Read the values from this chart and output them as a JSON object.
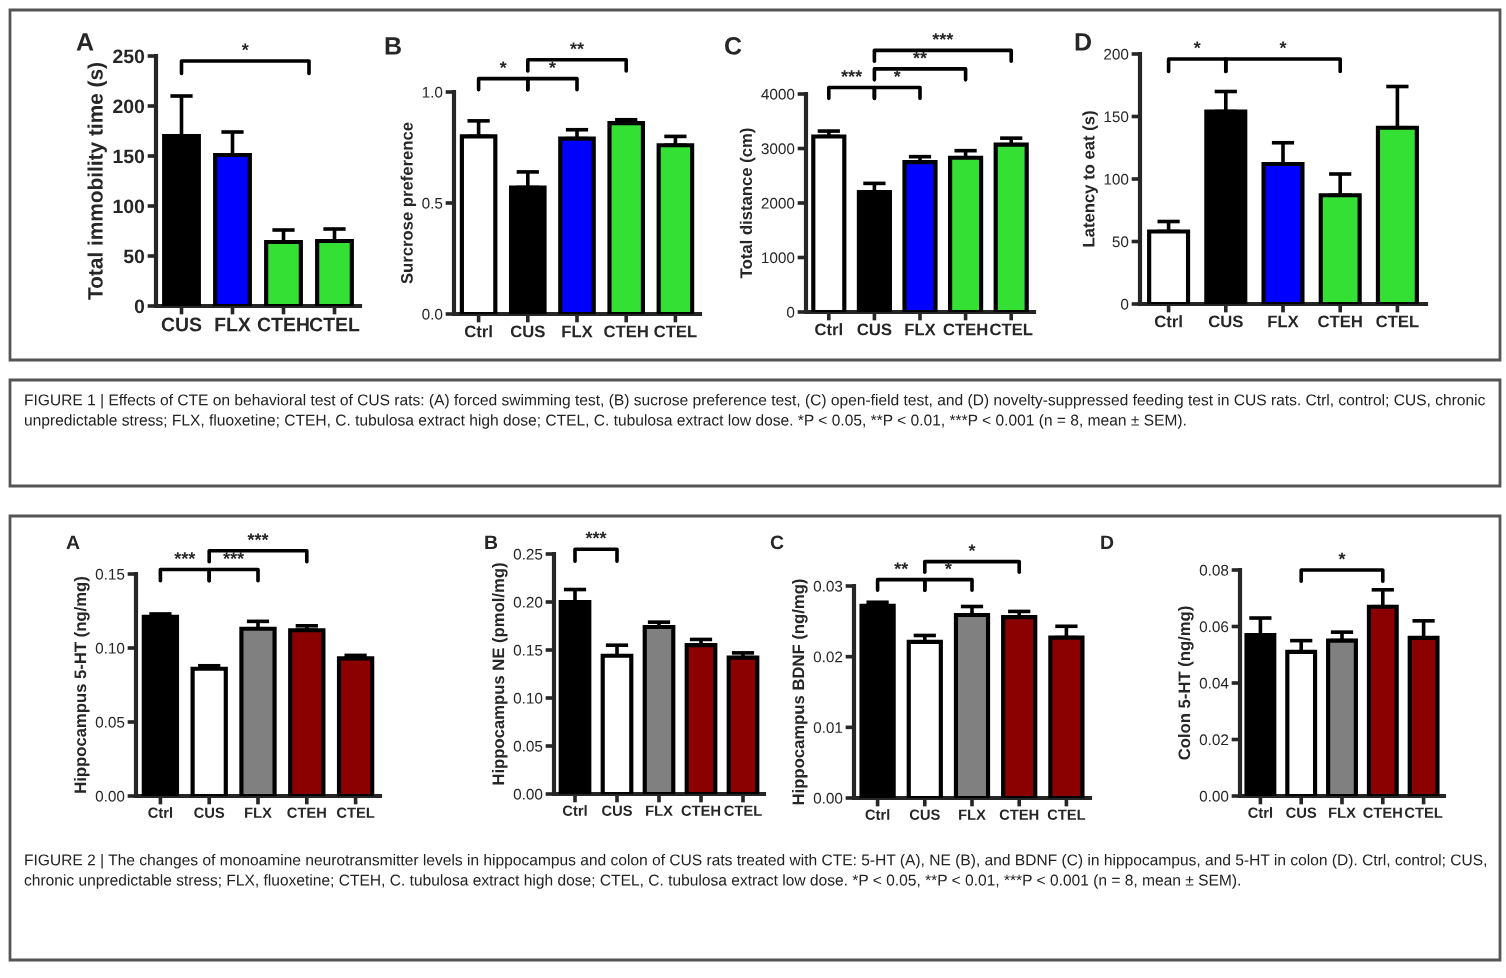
{
  "chart_data": [
    {
      "type": "bar",
      "title": "A",
      "ylabel": "Total immobility time (s)",
      "categories": [
        "CUS",
        "FLX",
        "CTEH",
        "CTEL"
      ],
      "values": [
        170,
        151,
        64,
        65
      ],
      "errors": [
        40,
        23,
        12,
        12
      ],
      "colors": [
        "#000000",
        "#0000ff",
        "#33e033",
        "#33e033"
      ],
      "ylim": [
        0,
        250
      ],
      "yticks": [
        0,
        50,
        100,
        150,
        200,
        250
      ],
      "annotations": [
        "*"
      ]
    },
    {
      "type": "bar",
      "title": "B",
      "ylabel": "Surcrose preference",
      "categories": [
        "Ctrl",
        "CUS",
        "FLX",
        "CTEH",
        "CTEL"
      ],
      "values": [
        0.8,
        0.57,
        0.79,
        0.86,
        0.76
      ],
      "errors": [
        0.07,
        0.07,
        0.04,
        0.015,
        0.04
      ],
      "colors": [
        "#ffffff",
        "#000000",
        "#0000ff",
        "#33e033",
        "#33e033"
      ],
      "ylim": [
        0,
        1.0
      ],
      "yticks": [
        {
          "value": 0,
          "label": "0.0"
        },
        {
          "value": 0.5,
          "label": "0.5"
        },
        {
          "value": 1.0,
          "label": "1.0"
        }
      ],
      "annotations": [
        "*",
        "*",
        "**"
      ]
    },
    {
      "type": "bar",
      "title": "C",
      "ylabel": "Total distance (cm)",
      "categories": [
        "Ctrl",
        "CUS",
        "FLX",
        "CTEH",
        "CTEL"
      ],
      "values": [
        3220,
        2200,
        2750,
        2830,
        3070
      ],
      "errors": [
        100,
        160,
        100,
        130,
        120
      ],
      "colors": [
        "#ffffff",
        "#000000",
        "#0000ff",
        "#33e033",
        "#33e033"
      ],
      "ylim": [
        0,
        4000
      ],
      "yticks": [
        0,
        1000,
        2000,
        3000,
        4000
      ],
      "annotations": [
        "***",
        "*",
        "**",
        "***"
      ]
    },
    {
      "type": "bar",
      "title": "D",
      "ylabel": "Latency to eat (s)",
      "categories": [
        "Ctrl",
        "CUS",
        "FLX",
        "CTEH",
        "CTEL"
      ],
      "values": [
        58,
        154,
        112,
        87,
        141
      ],
      "errors": [
        8,
        16,
        17,
        17,
        33
      ],
      "colors": [
        "#ffffff",
        "#000000",
        "#0000ff",
        "#33e033",
        "#33e033"
      ],
      "ylim": [
        0,
        200
      ],
      "yticks": [
        0,
        50,
        100,
        150,
        200
      ],
      "annotations": [
        "*",
        "*",
        "FIGURE 1 | Effects of CTE on behavioral test of CUS rats: (A) forced swimming test, (B) sucrose preference test, (C) open-field test, and (D) novelty-suppressed feeding test in CUS rats. Ctrl, control; CUS, chronic unpredictable stress; FLX, fluoxetine; CTEH, C. tubulosa extract high dose; CTEL, C. tubulosa extract low dose. *P < 0.05, **P < 0.01, ***P < 0.001 (n = 8, mean ± SEM)."
      ]
    },
    {
      "type": "bar",
      "title": "A",
      "ylabel": "Hippocampus 5-HT (ng/mg)",
      "categories": [
        "Ctrl",
        "CUS",
        "FLX",
        "CTEH",
        "CTEL"
      ],
      "values": [
        0.121,
        0.086,
        0.113,
        0.112,
        0.093
      ],
      "errors": [
        0.002,
        0.002,
        0.005,
        0.003,
        0.002
      ],
      "colors": [
        "#000000",
        "#ffffff",
        "#808080",
        "#8b0000",
        "#8b0000"
      ],
      "ylim": [
        0,
        0.15
      ],
      "yticks": [
        {
          "value": 0,
          "label": "0.00"
        },
        {
          "value": 0.05,
          "label": "0.05"
        },
        {
          "value": 0.1,
          "label": "0.10"
        },
        {
          "value": 0.15,
          "label": "0.15"
        }
      ],
      "annotations": [
        "***",
        "***",
        "***"
      ]
    },
    {
      "type": "bar",
      "title": "B",
      "ylabel": "Hippocampus NE (pmol/mg)",
      "categories": [
        "Ctrl",
        "CUS",
        "FLX",
        "CTEH",
        "CTEL"
      ],
      "values": [
        0.2,
        0.144,
        0.174,
        0.155,
        0.142
      ],
      "errors": [
        0.013,
        0.011,
        0.005,
        0.006,
        0.005
      ],
      "colors": [
        "#000000",
        "#ffffff",
        "#808080",
        "#8b0000",
        "#8b0000"
      ],
      "ylim": [
        0,
        0.25
      ],
      "yticks": [
        {
          "value": 0,
          "label": "0.00"
        },
        {
          "value": 0.05,
          "label": "0.05"
        },
        {
          "value": 0.1,
          "label": "0.10"
        },
        {
          "value": 0.15,
          "label": "0.15"
        },
        {
          "value": 0.2,
          "label": "0.20"
        },
        {
          "value": 0.25,
          "label": "0.25"
        }
      ],
      "annotations": [
        "***"
      ]
    },
    {
      "type": "bar",
      "title": "C",
      "ylabel": "Hippocampus BDNF (ng/mg)",
      "categories": [
        "Ctrl",
        "CUS",
        "FLX",
        "CTEH",
        "CTEL"
      ],
      "values": [
        0.0272,
        0.0221,
        0.0259,
        0.0256,
        0.0227
      ],
      "errors": [
        0.0005,
        0.0009,
        0.0012,
        0.0008,
        0.0016
      ],
      "colors": [
        "#000000",
        "#ffffff",
        "#808080",
        "#8b0000",
        "#8b0000"
      ],
      "ylim": [
        0,
        0.03
      ],
      "yticks": [
        {
          "value": 0,
          "label": "0.00"
        },
        {
          "value": 0.01,
          "label": "0.01"
        },
        {
          "value": 0.02,
          "label": "0.02"
        },
        {
          "value": 0.03,
          "label": "0.03"
        }
      ],
      "annotations": [
        "**",
        "*",
        "*"
      ]
    },
    {
      "type": "bar",
      "title": "D",
      "ylabel": "Colon 5-HT (ng/mg)",
      "categories": [
        "Ctrl",
        "CUS",
        "FLX",
        "CTEH",
        "CTEL"
      ],
      "values": [
        0.057,
        0.051,
        0.055,
        0.067,
        0.056
      ],
      "errors": [
        0.006,
        0.004,
        0.003,
        0.006,
        0.006
      ],
      "colors": [
        "#000000",
        "#ffffff",
        "#808080",
        "#8b0000",
        "#8b0000"
      ],
      "ylim": [
        0,
        0.08
      ],
      "yticks": [
        {
          "value": 0,
          "label": "0.00"
        },
        {
          "value": 0.02,
          "label": "0.02"
        },
        {
          "value": 0.04,
          "label": "0.04"
        },
        {
          "value": 0.06,
          "label": "0.06"
        },
        {
          "value": 0.08,
          "label": "0.08"
        }
      ],
      "annotations": [
        "*",
        "FIGURE 2 | The changes of monoamine neurotransmitter levels in hippocampus and colon of CUS rats treated with CTE: 5-HT (A), NE (B), and BDNF (C) in hippocampus, and 5-HT in colon (D). Ctrl, control; CUS, chronic unpredictable stress; FLX, fluoxetine; CTEH, C. tubulosa extract high dose; CTEL, C. tubulosa extract low dose. *P < 0.05, **P < 0.01, ***P < 0.001 (n = 8, mean ± SEM)."
      ]
    }
  ]
}
